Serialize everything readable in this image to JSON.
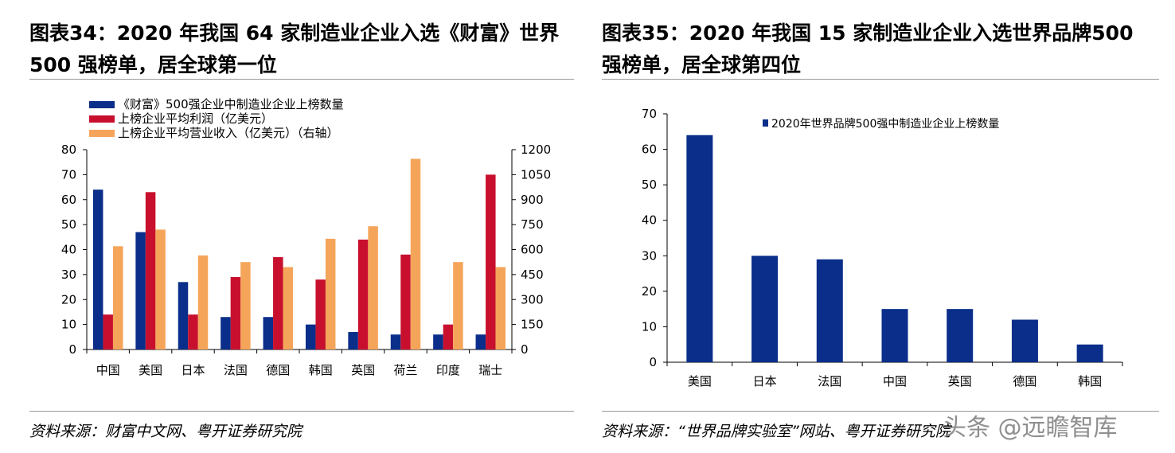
{
  "left_panel": {
    "title": "图表34：2020 年我国 64 家制造业企业入选《财富》世界 500 强榜单，居全球第一位",
    "source": "资料来源：财富中文网、粤开证券研究院"
  },
  "right_panel": {
    "title": "图表35：2020 年我国 15 家制造业企业入选世界品牌500 强榜单，居全球第四位",
    "source": "资料来源：“世界品牌实验室”网站、粤开证券研究院"
  },
  "watermark": "头条 @远瞻智库",
  "colors": {
    "navy": "#0a2e8a",
    "red": "#c8102e",
    "orange": "#f5a55a"
  },
  "chart_data": [
    {
      "type": "bar",
      "categories": [
        "中国",
        "美国",
        "日本",
        "法国",
        "德国",
        "韩国",
        "英国",
        "荷兰",
        "印度",
        "瑞士"
      ],
      "series": [
        {
          "name": "《财富》500强企业中制造业企业上榜数量",
          "axis": "left",
          "color": "#0a2e8a",
          "values": [
            64,
            47,
            27,
            13,
            13,
            10,
            7,
            6,
            6,
            6
          ]
        },
        {
          "name": "上榜企业平均利润（亿美元）",
          "axis": "left",
          "color": "#c8102e",
          "values": [
            14,
            63,
            14,
            29,
            37,
            28,
            44,
            38,
            10,
            70
          ]
        },
        {
          "name": "上榜企业平均营业收入（亿美元）（右轴）",
          "axis": "right",
          "color": "#f5a55a",
          "values": [
            620,
            720,
            565,
            525,
            495,
            665,
            740,
            1145,
            525,
            495
          ]
        }
      ],
      "ylim": [
        0,
        80
      ],
      "yticks": [
        0,
        10,
        20,
        30,
        40,
        50,
        60,
        70,
        80
      ],
      "y2lim": [
        0,
        1200
      ],
      "y2ticks": [
        0,
        150,
        300,
        450,
        600,
        750,
        900,
        1050,
        1200
      ],
      "legend_position": "top-left"
    },
    {
      "type": "bar",
      "categories": [
        "美国",
        "日本",
        "法国",
        "中国",
        "英国",
        "德国",
        "韩国"
      ],
      "series": [
        {
          "name": "2020年世界品牌500强中制造业企业上榜数量",
          "color": "#0a2e8a",
          "values": [
            64,
            30,
            29,
            15,
            15,
            12,
            5
          ]
        }
      ],
      "ylim": [
        0,
        70
      ],
      "yticks": [
        0,
        10,
        20,
        30,
        40,
        50,
        60,
        70
      ],
      "legend_position": "top"
    }
  ]
}
